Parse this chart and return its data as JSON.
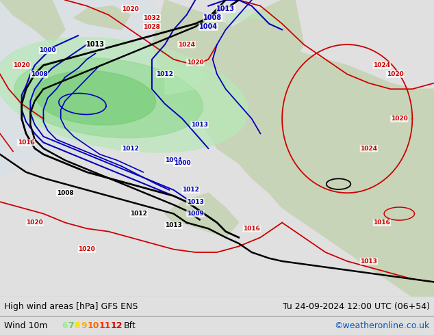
{
  "title_left": "High wind areas [hPa] GFS ENS",
  "title_right": "Tu 24-09-2024 12:00 UTC (06+54)",
  "subtitle_left": "Wind 10m",
  "legend_numbers": [
    "6",
    "7",
    "8",
    "9",
    "10",
    "11",
    "12"
  ],
  "legend_colors": [
    "#90ee90",
    "#66cc66",
    "#ffdd00",
    "#ffaa00",
    "#ff6600",
    "#ff2200",
    "#cc0000"
  ],
  "legend_suffix": "Bft",
  "credit": "©weatheronline.co.uk",
  "credit_color": "#0055bb",
  "map_bg": "#e8e8e8",
  "land_color": "#c8d4b8",
  "sea_color": "#d8e8f0",
  "gray_land": "#b8b8a8",
  "footer_bg": "#e0e0e0",
  "red": "#cc0000",
  "blue": "#0000bb",
  "black": "#000000",
  "green_light": "#b8e8b8",
  "green_mid": "#90d890",
  "green_dark": "#68c868",
  "figsize": [
    6.34,
    4.9
  ],
  "dpi": 100
}
